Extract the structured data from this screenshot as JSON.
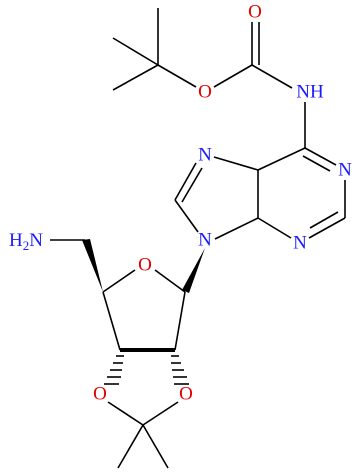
{
  "atoms": [
    {
      "label": "O"
    },
    {
      "label": "O"
    },
    {
      "label": "NH"
    },
    {
      "label": "N"
    },
    {
      "label": "N"
    },
    {
      "label": "N"
    },
    {
      "label": "N"
    },
    {
      "parts": [
        "H",
        "2",
        "N"
      ]
    },
    {
      "label": "O"
    },
    {
      "label": "O"
    },
    {
      "label": "O"
    }
  ]
}
